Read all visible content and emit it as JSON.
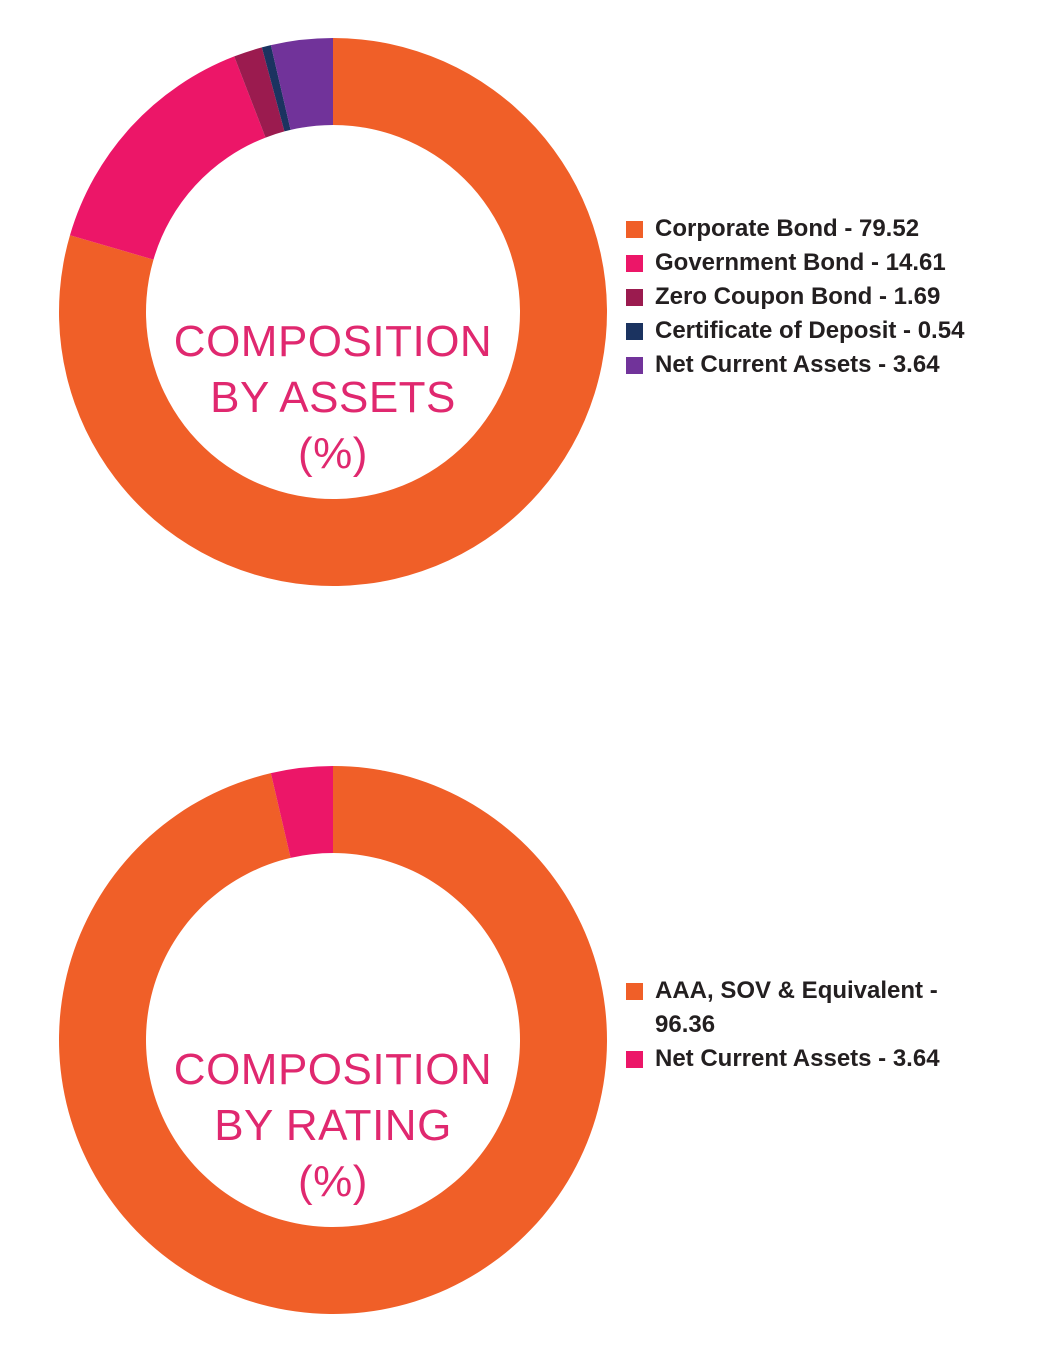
{
  "chart_data": [
    {
      "type": "pie",
      "donut": true,
      "title_lines": [
        "COMPOSITION",
        "BY ASSETS",
        "(%)"
      ],
      "legend_position": "right",
      "slices": [
        {
          "label": "Corporate Bond - 79.52",
          "value": 79.52,
          "color": "#f05f28"
        },
        {
          "label": "Government Bond - 14.61",
          "value": 14.61,
          "color": "#ec1668"
        },
        {
          "label": "Zero Coupon Bond - 1.69",
          "value": 1.69,
          "color": "#9b1b4f"
        },
        {
          "label": "Certificate of Deposit - 0.54",
          "value": 0.54,
          "color": "#1b3360"
        },
        {
          "label": "Net Current Assets - 3.64",
          "value": 3.64,
          "color": "#71339a"
        }
      ]
    },
    {
      "type": "pie",
      "donut": true,
      "title_lines": [
        "COMPOSITION",
        "BY RATING",
        "(%)"
      ],
      "legend_position": "right",
      "slices": [
        {
          "label": "AAA, SOV & Equivalent - 96.36",
          "value": 96.36,
          "color": "#f05f28"
        },
        {
          "label": "Net Current Assets - 3.64",
          "value": 3.64,
          "color": "#ec1668"
        }
      ]
    }
  ]
}
